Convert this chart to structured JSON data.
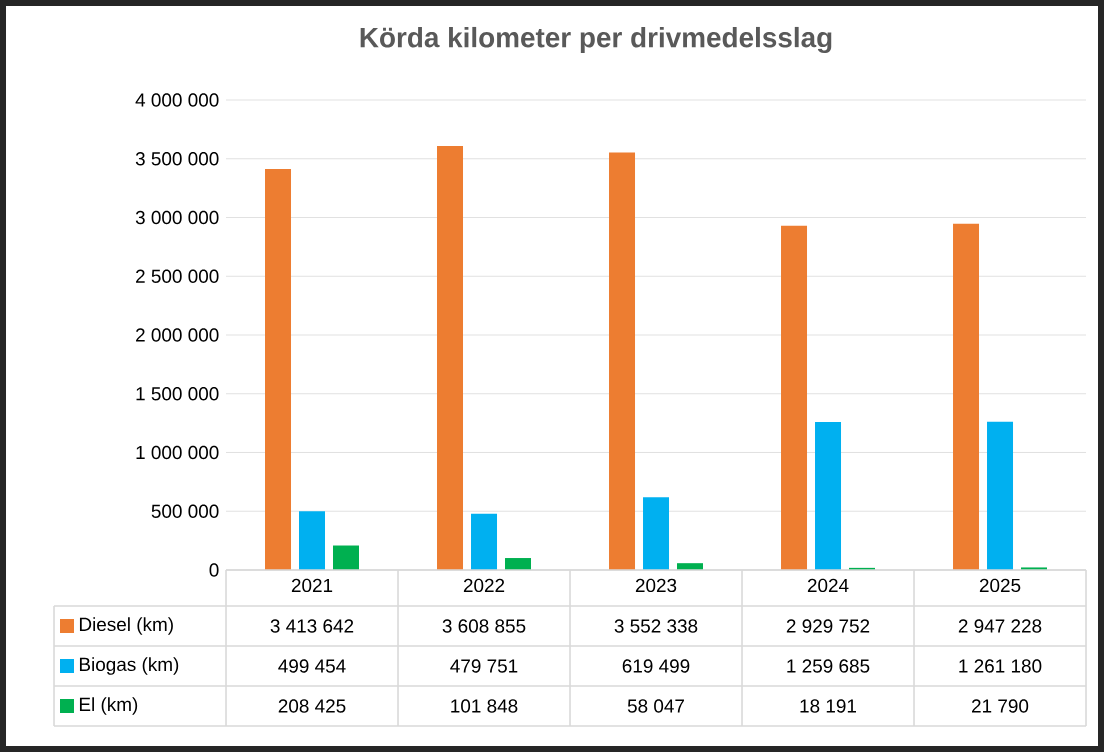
{
  "chart_data": {
    "type": "bar",
    "title": "Körda kilometer per drivmedelsslag",
    "categories": [
      "2021",
      "2022",
      "2023",
      "2024",
      "2025"
    ],
    "series": [
      {
        "name": "Diesel (km)",
        "color": "#ed7d31",
        "values": [
          3413642,
          3608855,
          3552338,
          2929752,
          2947228
        ],
        "value_labels": [
          "3 413 642",
          "3 608 855",
          "3 552 338",
          "2 929 752",
          "2 947 228"
        ]
      },
      {
        "name": "Biogas (km)",
        "color": "#00b0f0",
        "values": [
          499454,
          479751,
          619499,
          1259685,
          1261180
        ],
        "value_labels": [
          "499 454",
          "479 751",
          "619 499",
          "1 259 685",
          "1 261 180"
        ]
      },
      {
        "name": "El (km)",
        "color": "#00b050",
        "values": [
          208425,
          101848,
          58047,
          18191,
          21790
        ],
        "value_labels": [
          "208 425",
          "101 848",
          "58 047",
          "18 191",
          "21 790"
        ]
      }
    ],
    "ylim": [
      0,
      4000000
    ],
    "yticks": [
      {
        "value": 0,
        "label": "0"
      },
      {
        "value": 500000,
        "label": "500 000"
      },
      {
        "value": 1000000,
        "label": "1 000 000"
      },
      {
        "value": 1500000,
        "label": "1 500 000"
      },
      {
        "value": 2000000,
        "label": "2 000 000"
      },
      {
        "value": 2500000,
        "label": "2 500 000"
      },
      {
        "value": 3000000,
        "label": "3 000 000"
      },
      {
        "value": 3500000,
        "label": "3 500 000"
      },
      {
        "value": 4000000,
        "label": "4 000 000"
      }
    ],
    "grid": "y",
    "legend": "bottom"
  }
}
